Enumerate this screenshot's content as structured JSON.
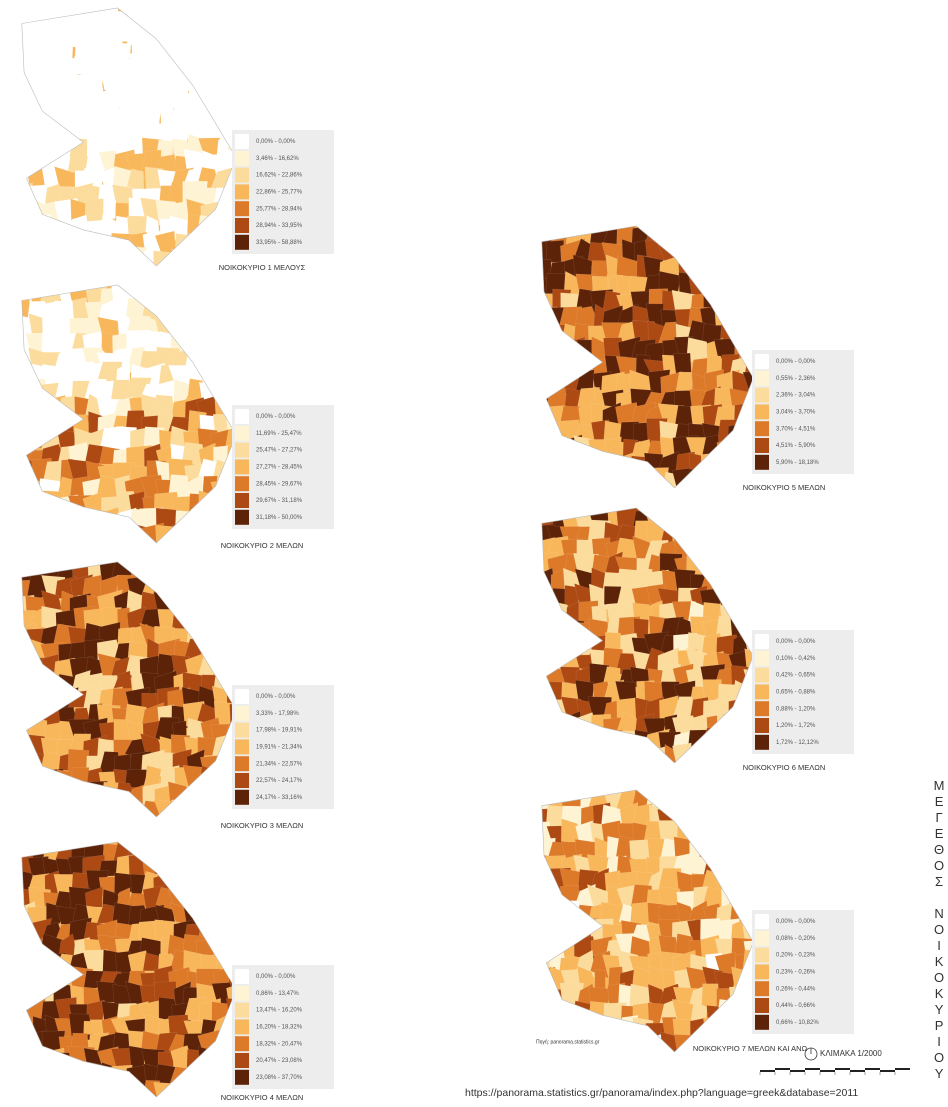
{
  "maps": [
    {
      "title": "ΝΟΙΚΟΚΥΡΙΟ 1 ΜΕΛΟΥΣ",
      "legend": [
        "0,00%  -  0,00%",
        "3,46%  -  16,62%",
        "16,62%  -  22,86%",
        "22,86%  -  25,77%",
        "25,77%  -  28,94%",
        "28,94%  -  33,95%",
        "33,95%  -  58,88%"
      ]
    },
    {
      "title": "ΝΟΙΚΟΚΥΡΙΟ 2 ΜΕΛΩΝ",
      "legend": [
        "0,00%  -  0,00%",
        "11,69%  -  25,47%",
        "25,47%  -  27,27%",
        "27,27%  -  28,45%",
        "28,45%  -  29,67%",
        "29,67%  -  31,18%",
        "31,18%  -  50,00%"
      ]
    },
    {
      "title": "ΝΟΙΚΟΚΥΡΙΟ 3 ΜΕΛΩΝ",
      "legend": [
        "0,00%  -  0,00%",
        "3,33%  -  17,98%",
        "17,98%  -  19,91%",
        "19,91%  -  21,34%",
        "21,34%  -  22,57%",
        "22,57%  -  24,17%",
        "24,17%  -  33,16%"
      ]
    },
    {
      "title": "ΝΟΙΚΟΚΥΡΙΟ 4 ΜΕΛΩΝ",
      "legend": [
        "0,00%  -  0,00%",
        "0,86%  -  13,47%",
        "13,47%  -  16,20%",
        "16,20%  -  18,32%",
        "18,32%  -  20,47%",
        "20,47%  -  23,08%",
        "23,08%  -  37,70%"
      ]
    },
    {
      "title": "ΝΟΙΚΟΚΥΡΙΟ 5 ΜΕΛΩΝ",
      "legend": [
        "0,00%  -  0,00%",
        "0,55%  -  2,36%",
        "2,36%  -  3,04%",
        "3,04%  -  3,70%",
        "3,70%  -  4,51%",
        "4,51%  -  5,90%",
        "5,90%  -  18,18%"
      ]
    },
    {
      "title": "ΝΟΙΚΟΚΥΡΙΟ 6 ΜΕΛΩΝ",
      "legend": [
        "0,00%  -  0,00%",
        "0,10%  -  0,42%",
        "0,42%  -  0,65%",
        "0,65%  -  0,88%",
        "0,88%  -  1,20%",
        "1,20%  -  1,72%",
        "1,72%  -  12,12%"
      ]
    },
    {
      "title": "ΝΟΙΚΟΚΥΡΙΟ 7 ΜΕΛΩΝ ΚΑΙ ΑΝΩ",
      "legend": [
        "0,00%  -  0,00%",
        "0,08%  -  0,20%",
        "0,20%  -  0,23%",
        "0,23%  -  0,26%",
        "0,26%  -  0,44%",
        "0,44%  -  0,66%",
        "0,66%  -  10,82%"
      ]
    }
  ],
  "legend_colors": [
    "#ffffff",
    "#fef3d2",
    "#fcdc9c",
    "#f9b75c",
    "#dd7a2a",
    "#ad4a14",
    "#5c2308"
  ],
  "side_title": "ΜΕΓΕΘΟΣ ΝΟΙΚΟΚΥΡΙΟΥ",
  "scale": "ΚΛΙΜΑΚΑ 1/2000",
  "source": "Πηγή: panorama.statistics.gr",
  "url": "https://panorama.statistics.gr/panorama/index.php?language=greek&database=2011"
}
